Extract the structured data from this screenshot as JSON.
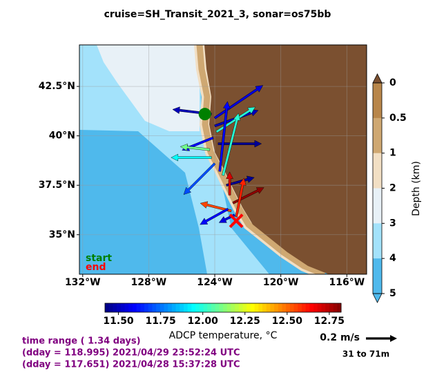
{
  "chart_data": {
    "type": "vector_map",
    "title": "cruise=SH_Transit_2021_3,   sonar=os75bb",
    "xlim": [
      -132.2,
      -114.8
    ],
    "ylim": [
      33.0,
      44.6
    ],
    "xticks": [
      {
        "value": -132,
        "label": "132°W"
      },
      {
        "value": -128,
        "label": "128°W"
      },
      {
        "value": -124,
        "label": "124°W"
      },
      {
        "value": -120,
        "label": "120°W"
      },
      {
        "value": -116,
        "label": "116°W"
      }
    ],
    "yticks": [
      {
        "value": 35,
        "label": "35°N"
      },
      {
        "value": 37.5,
        "label": "37.5°N"
      },
      {
        "value": 40,
        "label": "40°N"
      },
      {
        "value": 42.5,
        "label": "42.5°N"
      }
    ],
    "grid": true,
    "arrows": [
      {
        "lon": -124.2,
        "lat": 41.1,
        "u": -0.25,
        "v": 0.03,
        "temp": 11.5
      },
      {
        "lon": -124.0,
        "lat": 40.9,
        "u": 0.31,
        "v": 0.21,
        "temp": 11.55
      },
      {
        "lon": -124.0,
        "lat": 40.5,
        "u": 0.28,
        "v": 0.1,
        "temp": 11.5
      },
      {
        "lon": -123.9,
        "lat": 40.2,
        "u": 0.25,
        "v": 0.16,
        "temp": 12.0
      },
      {
        "lon": -124.1,
        "lat": 39.9,
        "u": -0.2,
        "v": -0.08,
        "temp": 11.6
      },
      {
        "lon": -123.8,
        "lat": 39.6,
        "u": 0.28,
        "v": 0.0,
        "temp": 11.45
      },
      {
        "lon": -124.3,
        "lat": 39.3,
        "u": -0.19,
        "v": 0.02,
        "temp": 12.1
      },
      {
        "lon": -124.2,
        "lat": 38.9,
        "u": -0.26,
        "v": 0.0,
        "temp": 11.95
      },
      {
        "lon": -124.0,
        "lat": 38.6,
        "u": -0.2,
        "v": -0.2,
        "temp": 11.7
      },
      {
        "lon": -123.5,
        "lat": 38.0,
        "u": 0.1,
        "v": 0.4,
        "temp": 12.0
      },
      {
        "lon": -123.7,
        "lat": 38.2,
        "u": 0.05,
        "v": 0.45,
        "temp": 11.6
      },
      {
        "lon": -123.3,
        "lat": 37.5,
        "u": 0.18,
        "v": 0.05,
        "temp": 11.45
      },
      {
        "lon": -123.1,
        "lat": 37.0,
        "u": 0.0,
        "v": 0.15,
        "temp": 12.7
      },
      {
        "lon": -122.9,
        "lat": 36.6,
        "u": 0.2,
        "v": 0.1,
        "temp": 12.8
      },
      {
        "lon": -123.0,
        "lat": 36.2,
        "u": -0.2,
        "v": 0.05,
        "temp": 12.55
      },
      {
        "lon": -123.2,
        "lat": 36.3,
        "u": -0.18,
        "v": -0.1,
        "temp": 11.6
      },
      {
        "lon": -122.7,
        "lat": 35.9,
        "u": 0.05,
        "v": 0.25,
        "temp": 12.6
      },
      {
        "lon": -122.8,
        "lat": 36.0,
        "u": -0.1,
        "v": -0.05,
        "temp": 11.55
      }
    ],
    "start": {
      "lon": -124.6,
      "lat": 41.1,
      "label": "start",
      "color": "#008000"
    },
    "end": {
      "lon": -122.7,
      "lat": 35.7,
      "label": "end",
      "color": "#ff0000"
    },
    "clim": [
      11.42,
      12.82
    ],
    "colorbar_label": "ADCP temperature, °C",
    "colorbar_ticks": [
      {
        "value": 11.5,
        "label": "11.50"
      },
      {
        "value": 11.75,
        "label": "11.75"
      },
      {
        "value": 12,
        "label": "12.00"
      },
      {
        "value": 12.25,
        "label": "12.25"
      },
      {
        "value": 12.5,
        "label": "12.50"
      },
      {
        "value": 12.75,
        "label": "12.75"
      }
    ],
    "depth_label": "Depth (km)",
    "depth_ticks": [
      0,
      0.5,
      1,
      2,
      3,
      4,
      5
    ],
    "depth_colors": [
      "#b8864a",
      "#cfa872",
      "#f2dfc4",
      "#e8f1f7",
      "#a3e2fb",
      "#4fb9ec"
    ],
    "scale": {
      "value": 0.2,
      "label": "0.2 m/s"
    },
    "depth_range": "31 to 71m",
    "time_lines": [
      "time range ( 1.34 days)",
      "(dday = 118.995) 2021/04/29 23:52:24 UTC",
      "(dday = 117.651) 2021/04/28 15:37:28 UTC"
    ]
  }
}
